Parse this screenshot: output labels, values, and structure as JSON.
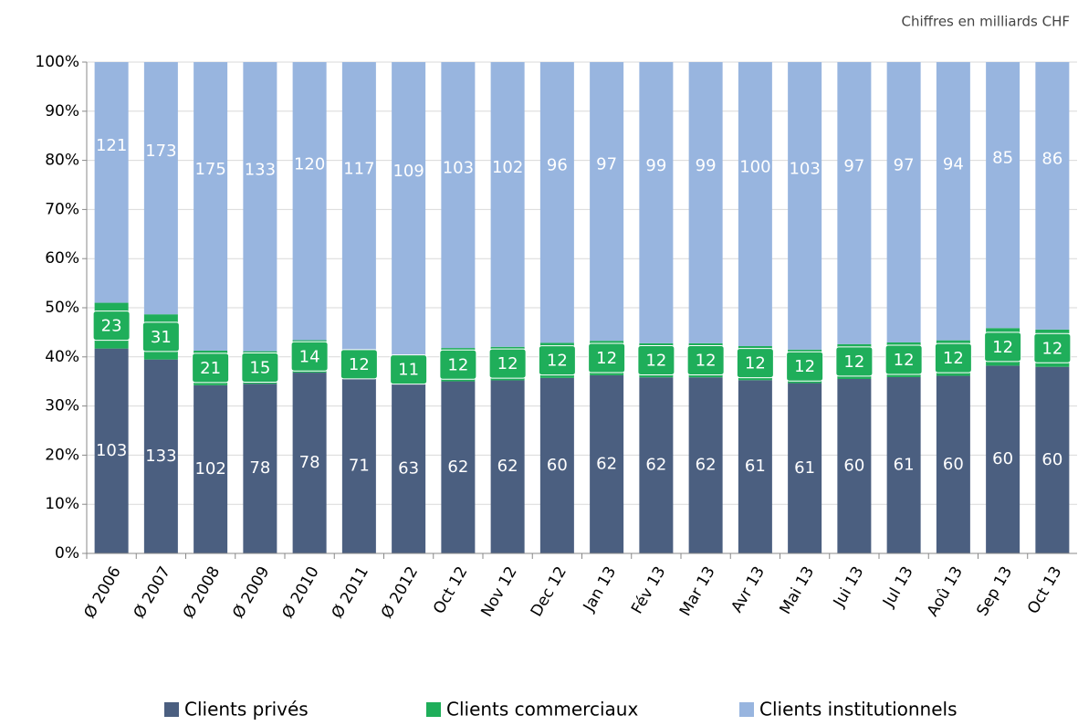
{
  "chart_data": {
    "type": "stacked_percent_bar",
    "subtitle": "Chiffres en milliards CHF",
    "categories": [
      "Ø 2006",
      "Ø 2007",
      "Ø 2008",
      "Ø 2009",
      "Ø 2010",
      "Ø 2011",
      "Ø 2012",
      "Oct 12",
      "Nov 12",
      "Dec 12",
      "Jan 13",
      "Fév 13",
      "Mar 13",
      "Avr 13",
      "Mai 13",
      "Jui 13",
      "Jul 13",
      "Aoû 13",
      "Sep 13",
      "Oct 13"
    ],
    "series": [
      {
        "name": "Clients privés",
        "color": "#4b5f80",
        "values": [
          103,
          133,
          102,
          78,
          78,
          71,
          63,
          62,
          62,
          60,
          62,
          62,
          62,
          61,
          61,
          60,
          61,
          60,
          60,
          60
        ]
      },
      {
        "name": "Clients commerciaux",
        "color": "#1fae5a",
        "values": [
          23,
          31,
          21,
          15,
          14,
          12,
          11,
          12,
          12,
          12,
          12,
          12,
          12,
          12,
          12,
          12,
          12,
          12,
          12,
          12
        ]
      },
      {
        "name": "Clients institutionnels",
        "color": "#98b5df",
        "values": [
          121,
          173,
          175,
          133,
          120,
          117,
          109,
          103,
          102,
          96,
          97,
          99,
          99,
          100,
          103,
          97,
          97,
          94,
          85,
          86
        ]
      }
    ],
    "ylim": [
      0,
      100
    ],
    "yticks": [
      {
        "value": 0,
        "label": "0%"
      },
      {
        "value": 10,
        "label": "10%"
      },
      {
        "value": 20,
        "label": "20%"
      },
      {
        "value": 30,
        "label": "30%"
      },
      {
        "value": 40,
        "label": "40%"
      },
      {
        "value": 50,
        "label": "50%"
      },
      {
        "value": 60,
        "label": "60%"
      },
      {
        "value": 70,
        "label": "70%"
      },
      {
        "value": 80,
        "label": "80%"
      },
      {
        "value": 90,
        "label": "90%"
      },
      {
        "value": 100,
        "label": "100%"
      }
    ],
    "grid": true
  }
}
